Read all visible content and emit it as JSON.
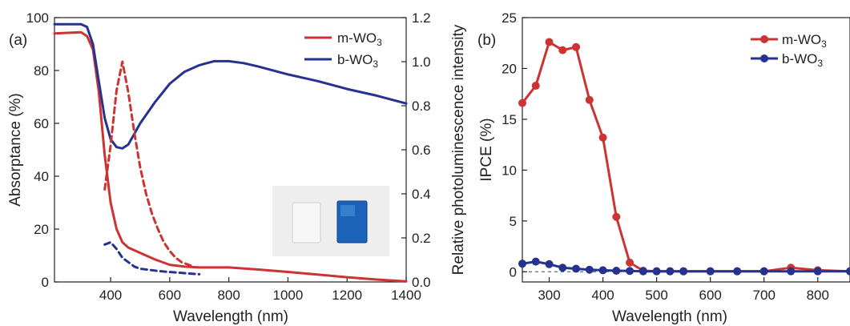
{
  "colors": {
    "m": "#cc3333",
    "b": "#25338f",
    "axis": "#222222",
    "zero_line": "#444444"
  },
  "chart_data": [
    {
      "type": "line",
      "panel_label": "(a)",
      "xlabel": "Wavelength (nm)",
      "ylabel": "Absorptance (%)",
      "y2label": "Relative photoluminescence intensity",
      "xlim": [
        210,
        1400
      ],
      "ylim": [
        0,
        100
      ],
      "y2lim": [
        0,
        1.2
      ],
      "xticks": [
        400,
        600,
        800,
        1000,
        1200,
        1400
      ],
      "yticks": [
        0,
        20,
        40,
        60,
        80,
        100
      ],
      "y2ticks": [
        0.0,
        0.2,
        0.4,
        0.6,
        0.8,
        1.0,
        1.2
      ],
      "legend_position": "top-right",
      "series": [
        {
          "name": "m-WO3",
          "axis": "left",
          "style": "solid",
          "color_key": "m",
          "x": [
            210,
            300,
            320,
            340,
            360,
            380,
            400,
            420,
            440,
            460,
            500,
            550,
            600,
            650,
            700,
            800,
            900,
            1000,
            1100,
            1200,
            1300,
            1400
          ],
          "y": [
            94,
            94.5,
            93,
            88,
            72,
            48,
            30,
            20,
            15,
            13,
            11,
            8.5,
            6.5,
            5.8,
            5.5,
            5.5,
            4.7,
            3.8,
            2.8,
            1.8,
            0.9,
            0.2
          ]
        },
        {
          "name": "b-WO3",
          "axis": "left",
          "style": "solid",
          "color_key": "b",
          "x": [
            210,
            300,
            320,
            340,
            360,
            380,
            400,
            420,
            440,
            460,
            480,
            500,
            550,
            600,
            650,
            700,
            750,
            800,
            850,
            900,
            1000,
            1100,
            1200,
            1300,
            1400
          ],
          "y": [
            97.5,
            97.5,
            96.5,
            90,
            76,
            62,
            54,
            51,
            50.5,
            52,
            56,
            60,
            68,
            75,
            79.5,
            82,
            83.5,
            83.5,
            82.8,
            81.5,
            78.5,
            76,
            73,
            70.5,
            67.5
          ]
        },
        {
          "name": "m-WO3",
          "axis": "right",
          "style": "dashed",
          "color_key": "m",
          "x": [
            380,
            400,
            420,
            440,
            460,
            480,
            500,
            520,
            540,
            560,
            580,
            600,
            620,
            640,
            660,
            680
          ],
          "y": [
            0.42,
            0.62,
            0.87,
            1.0,
            0.86,
            0.68,
            0.52,
            0.4,
            0.31,
            0.24,
            0.18,
            0.14,
            0.11,
            0.09,
            0.08,
            0.07
          ]
        },
        {
          "name": "b-WO3",
          "axis": "right",
          "style": "dashed",
          "color_key": "b",
          "x": [
            380,
            400,
            420,
            440,
            460,
            480,
            500,
            530,
            560,
            600,
            650,
            700
          ],
          "y": [
            0.17,
            0.18,
            0.15,
            0.11,
            0.09,
            0.07,
            0.06,
            0.055,
            0.05,
            0.045,
            0.04,
            0.035
          ]
        }
      ]
    },
    {
      "type": "line",
      "panel_label": "(b)",
      "xlabel": "Wavelength (nm)",
      "ylabel": "IPCE (%)",
      "xlim": [
        250,
        860
      ],
      "ylim": [
        -1,
        25
      ],
      "xticks": [
        300,
        400,
        500,
        600,
        700,
        800
      ],
      "yticks": [
        0,
        5,
        10,
        15,
        20,
        25
      ],
      "zero_line": true,
      "legend_position": "top-right",
      "series": [
        {
          "name": "m-WO3",
          "color_key": "m",
          "x": [
            250,
            275,
            300,
            325,
            350,
            375,
            400,
            425,
            450,
            475,
            500,
            525,
            550,
            600,
            650,
            700,
            750,
            800,
            860
          ],
          "y": [
            16.6,
            18.3,
            22.6,
            21.8,
            22.1,
            16.9,
            13.2,
            5.4,
            0.9,
            0.1,
            0.05,
            0.05,
            0.05,
            0.05,
            0.05,
            0.05,
            0.4,
            0.15,
            0.05
          ]
        },
        {
          "name": "b-WO3",
          "color_key": "b",
          "x": [
            250,
            275,
            300,
            325,
            350,
            375,
            400,
            425,
            450,
            475,
            500,
            525,
            550,
            600,
            650,
            700,
            750,
            800,
            860
          ],
          "y": [
            0.8,
            1.0,
            0.75,
            0.4,
            0.3,
            0.2,
            0.15,
            0.1,
            0.08,
            0.05,
            0.05,
            0.05,
            0.05,
            0.05,
            0.05,
            0.05,
            0.05,
            0.05,
            0.05
          ]
        }
      ]
    }
  ]
}
